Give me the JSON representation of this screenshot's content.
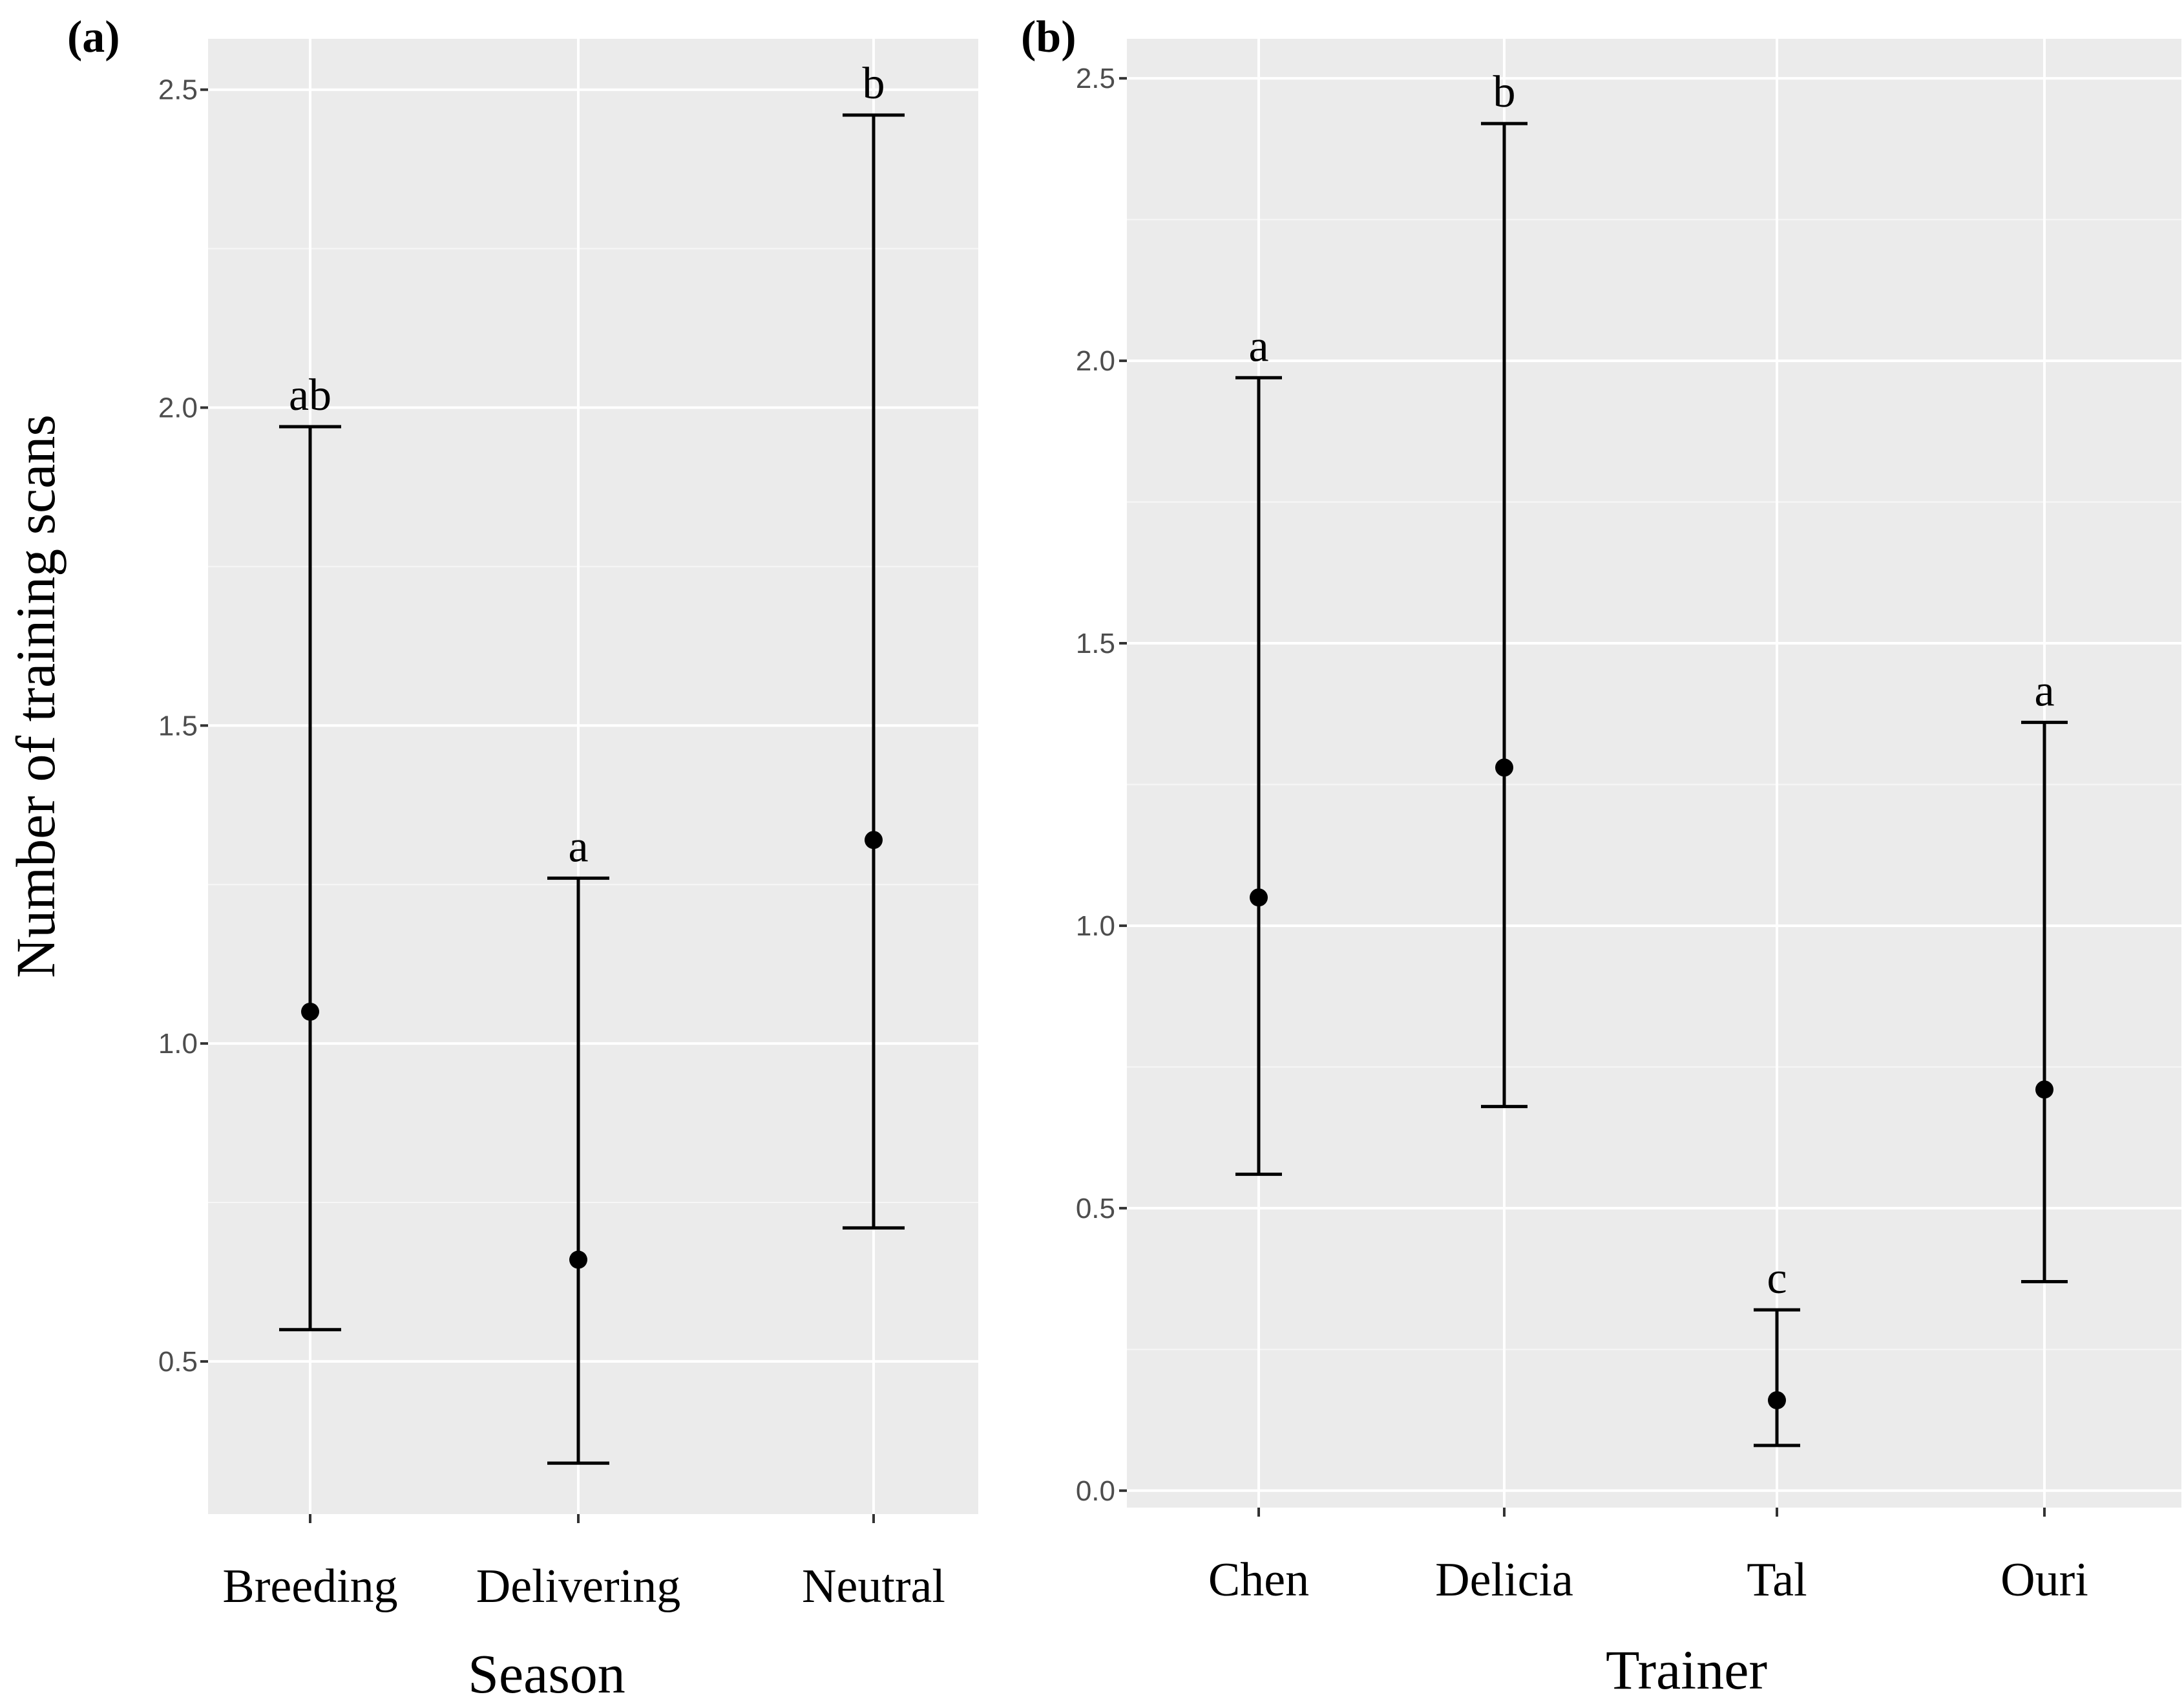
{
  "chart_data": [
    {
      "type": "scatter",
      "panel": "(a)",
      "title": "",
      "xlabel": "Season",
      "ylabel": "Number of training scans",
      "ylim": [
        0.26,
        2.58
      ],
      "y_ticks": [
        0.5,
        1.0,
        1.5,
        2.0,
        2.5
      ],
      "y_tick_labels": [
        "0.5",
        "1.0",
        "1.5",
        "2.0",
        "2.5"
      ],
      "categories": [
        "Breeding",
        "Delivering",
        "Neutral"
      ],
      "series": [
        {
          "name": "Number of training scans",
          "values": [
            1.05,
            0.66,
            1.32
          ],
          "lower": [
            0.55,
            0.34,
            0.71
          ],
          "upper": [
            1.97,
            1.26,
            2.46
          ],
          "labels": [
            "ab",
            "a",
            "b"
          ]
        }
      ]
    },
    {
      "type": "scatter",
      "panel": "(b)",
      "title": "",
      "xlabel": "Trainer",
      "ylabel": "",
      "ylim": [
        -0.03,
        2.57
      ],
      "y_ticks": [
        0.0,
        0.5,
        1.0,
        1.5,
        2.0,
        2.5
      ],
      "y_tick_labels": [
        "0.0",
        "0.5",
        "1.0",
        "1.5",
        "2.0",
        "2.5"
      ],
      "categories": [
        "Chen",
        "Delicia",
        "Tal",
        "Ouri"
      ],
      "series": [
        {
          "name": "Number of training scans",
          "values": [
            1.05,
            1.28,
            0.16,
            0.71
          ],
          "lower": [
            0.56,
            0.68,
            0.08,
            0.37
          ],
          "upper": [
            1.97,
            2.42,
            0.32,
            1.36
          ],
          "labels": [
            "a",
            "b",
            "c",
            "a"
          ]
        }
      ]
    }
  ]
}
